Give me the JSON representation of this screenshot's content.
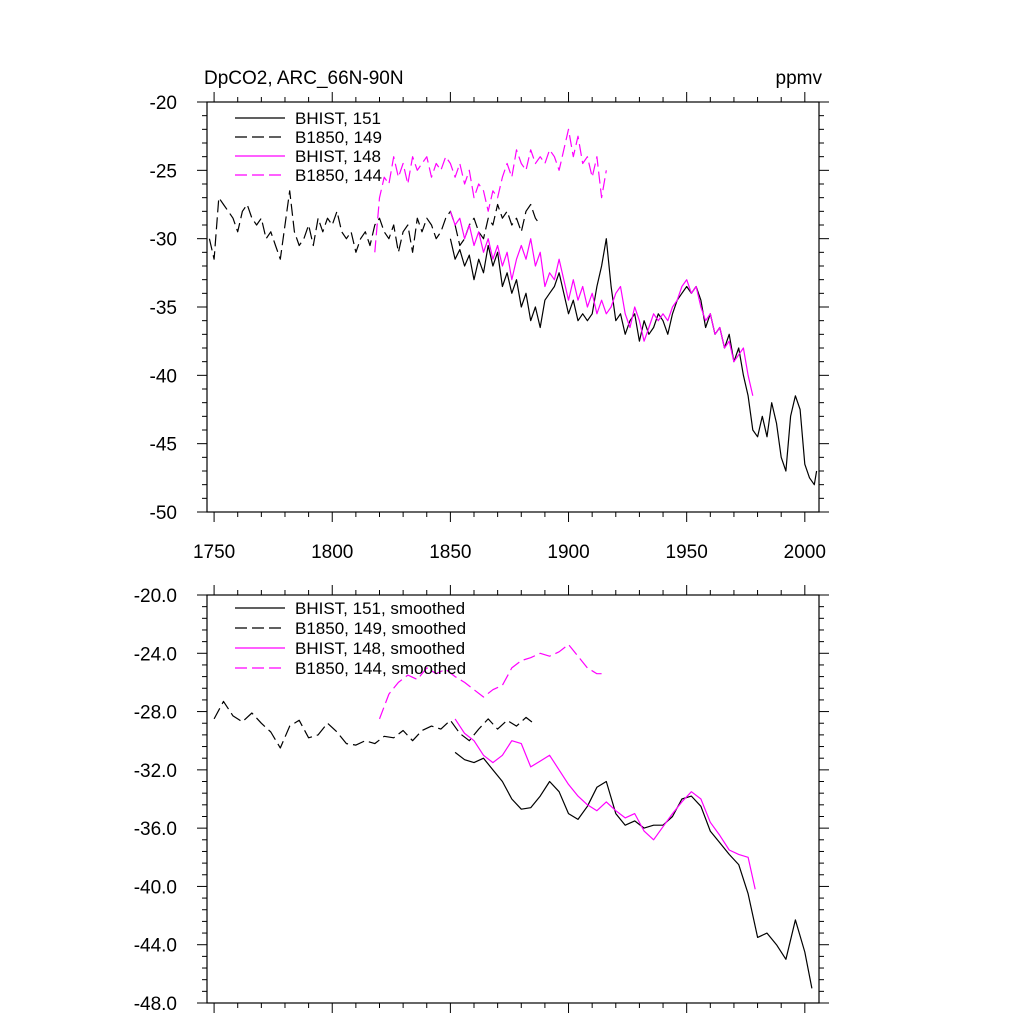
{
  "chart_data": [
    {
      "type": "line",
      "title": "DpCO2, ARC_66N-90N",
      "units": "ppmv",
      "xlim": [
        1747,
        2006
      ],
      "ylim": [
        -50,
        -20
      ],
      "x_ticks": [
        "1750",
        "1800",
        "1850",
        "1900",
        "1950",
        "2000"
      ],
      "x_tick_values": [
        1750,
        1800,
        1850,
        1900,
        1950,
        2000
      ],
      "y_ticks": [
        "-20",
        "-25",
        "-30",
        "-35",
        "-40",
        "-45",
        "-50"
      ],
      "y_tick_values": [
        -20,
        -25,
        -30,
        -35,
        -40,
        -45,
        -50
      ],
      "legend_placement": "top-left",
      "series": [
        {
          "name": "BHIST, 151",
          "color": "#000000",
          "dash": "solid",
          "x": [
            1850,
            1852,
            1854,
            1856,
            1858,
            1860,
            1862,
            1864,
            1866,
            1868,
            1870,
            1872,
            1874,
            1876,
            1878,
            1880,
            1882,
            1884,
            1886,
            1888,
            1890,
            1892,
            1894,
            1896,
            1898,
            1900,
            1902,
            1904,
            1906,
            1908,
            1910,
            1912,
            1914,
            1916,
            1918,
            1920,
            1922,
            1924,
            1926,
            1928,
            1930,
            1932,
            1934,
            1936,
            1938,
            1940,
            1942,
            1944,
            1946,
            1948,
            1950,
            1952,
            1954,
            1956,
            1958,
            1960,
            1962,
            1964,
            1966,
            1968,
            1970,
            1972,
            1974,
            1976,
            1978,
            1980,
            1982,
            1984,
            1986,
            1988,
            1990,
            1992,
            1994,
            1996,
            1998,
            2000,
            2002,
            2004,
            2005
          ],
          "y": [
            -30.0,
            -31.5,
            -30.8,
            -32.0,
            -31.2,
            -33.0,
            -31.5,
            -32.5,
            -30.5,
            -32.0,
            -31.0,
            -33.5,
            -32.5,
            -34.0,
            -33.0,
            -35.0,
            -34.0,
            -36.0,
            -35.0,
            -36.5,
            -34.5,
            -34.0,
            -33.5,
            -32.5,
            -34.0,
            -35.5,
            -34.5,
            -36.0,
            -35.5,
            -36.0,
            -35.5,
            -33.5,
            -32.0,
            -30.0,
            -33.5,
            -36.0,
            -35.5,
            -37.0,
            -36.0,
            -35.5,
            -37.5,
            -36.0,
            -37.0,
            -36.5,
            -35.5,
            -36.0,
            -37.0,
            -35.5,
            -34.5,
            -34.0,
            -33.5,
            -34.0,
            -33.5,
            -34.5,
            -36.5,
            -35.5,
            -37.0,
            -36.5,
            -38.0,
            -37.0,
            -39.0,
            -38.0,
            -40.0,
            -41.5,
            -44.0,
            -44.5,
            -43.0,
            -44.5,
            -42.0,
            -43.5,
            -46.0,
            -47.0,
            -43.0,
            -41.5,
            -42.5,
            -46.5,
            -47.5,
            -48.0,
            -47.0
          ]
        },
        {
          "name": "B1850, 149",
          "color": "#000000",
          "dash": "dashed",
          "x": [
            1748,
            1750,
            1752,
            1754,
            1756,
            1758,
            1760,
            1762,
            1764,
            1766,
            1768,
            1770,
            1772,
            1774,
            1776,
            1778,
            1780,
            1782,
            1784,
            1786,
            1788,
            1790,
            1792,
            1794,
            1796,
            1798,
            1800,
            1802,
            1804,
            1806,
            1808,
            1810,
            1812,
            1814,
            1816,
            1818,
            1820,
            1822,
            1824,
            1826,
            1828,
            1830,
            1832,
            1834,
            1836,
            1838,
            1840,
            1842,
            1844,
            1846,
            1848,
            1850,
            1852,
            1854,
            1856,
            1858,
            1860,
            1862,
            1864,
            1866,
            1868,
            1870,
            1872,
            1874,
            1876,
            1878,
            1880,
            1882,
            1884,
            1886,
            1888
          ],
          "y": [
            -30.0,
            -31.5,
            -27.0,
            -27.5,
            -28.0,
            -28.5,
            -29.5,
            -28.0,
            -27.5,
            -28.5,
            -29.0,
            -28.5,
            -30.0,
            -29.5,
            -30.5,
            -31.5,
            -29.0,
            -26.5,
            -29.5,
            -30.5,
            -30.0,
            -29.0,
            -30.5,
            -28.5,
            -29.5,
            -28.5,
            -29.0,
            -28.0,
            -29.5,
            -30.0,
            -29.5,
            -31.0,
            -30.0,
            -29.5,
            -30.5,
            -29.0,
            -28.5,
            -29.5,
            -30.0,
            -29.0,
            -31.0,
            -29.5,
            -29.0,
            -31.0,
            -28.5,
            -29.5,
            -28.5,
            -29.0,
            -30.0,
            -29.5,
            -28.5,
            -28.0,
            -29.0,
            -30.5,
            -30.0,
            -29.0,
            -28.5,
            -29.5,
            -30.0,
            -28.5,
            -29.0,
            -27.5,
            -28.5,
            -28.0,
            -29.0,
            -28.5,
            -29.5,
            -28.0,
            -27.5,
            -28.5,
            -29.0
          ]
        },
        {
          "name": "BHIST, 148",
          "color": "#ff00ff",
          "dash": "solid",
          "x": [
            1850,
            1852,
            1854,
            1856,
            1858,
            1860,
            1862,
            1864,
            1866,
            1868,
            1870,
            1872,
            1874,
            1876,
            1878,
            1880,
            1882,
            1884,
            1886,
            1888,
            1890,
            1892,
            1894,
            1896,
            1898,
            1900,
            1902,
            1904,
            1906,
            1908,
            1910,
            1912,
            1914,
            1916,
            1918,
            1920,
            1922,
            1924,
            1926,
            1928,
            1930,
            1932,
            1934,
            1936,
            1938,
            1940,
            1942,
            1944,
            1946,
            1948,
            1950,
            1952,
            1954,
            1956,
            1958,
            1960,
            1962,
            1964,
            1966,
            1968,
            1970,
            1972,
            1974,
            1976,
            1978
          ],
          "y": [
            -28.0,
            -29.0,
            -28.5,
            -30.0,
            -29.0,
            -30.5,
            -29.5,
            -31.0,
            -30.0,
            -31.5,
            -30.5,
            -32.0,
            -31.0,
            -33.0,
            -31.5,
            -30.5,
            -31.5,
            -30.0,
            -32.0,
            -31.0,
            -33.5,
            -32.5,
            -33.0,
            -31.5,
            -33.0,
            -34.5,
            -33.0,
            -34.5,
            -33.5,
            -35.0,
            -34.0,
            -35.5,
            -34.5,
            -35.5,
            -35.0,
            -34.0,
            -33.5,
            -35.5,
            -36.5,
            -35.0,
            -36.0,
            -37.5,
            -36.5,
            -35.5,
            -36.0,
            -35.5,
            -36.0,
            -35.0,
            -34.5,
            -33.5,
            -33.0,
            -34.0,
            -33.5,
            -35.0,
            -36.0,
            -35.5,
            -37.0,
            -36.5,
            -38.0,
            -37.5,
            -39.0,
            -38.5,
            -38.0,
            -40.0,
            -41.5
          ]
        },
        {
          "name": "B1850, 144",
          "color": "#ff00ff",
          "dash": "dashed",
          "x": [
            1818,
            1820,
            1822,
            1824,
            1826,
            1828,
            1830,
            1832,
            1834,
            1836,
            1838,
            1840,
            1842,
            1844,
            1846,
            1848,
            1850,
            1852,
            1854,
            1856,
            1858,
            1860,
            1862,
            1864,
            1866,
            1868,
            1870,
            1872,
            1874,
            1876,
            1878,
            1880,
            1882,
            1884,
            1886,
            1888,
            1890,
            1892,
            1894,
            1896,
            1898,
            1900,
            1902,
            1904,
            1906,
            1908,
            1910,
            1912,
            1914,
            1916
          ],
          "y": [
            -31.0,
            -27.0,
            -25.5,
            -26.0,
            -24.0,
            -25.5,
            -24.5,
            -26.0,
            -24.0,
            -25.0,
            -24.5,
            -24.0,
            -25.5,
            -24.5,
            -25.0,
            -24.0,
            -24.5,
            -25.5,
            -24.5,
            -26.0,
            -25.0,
            -27.0,
            -26.0,
            -26.5,
            -28.0,
            -26.5,
            -27.0,
            -25.5,
            -24.5,
            -25.5,
            -23.5,
            -24.5,
            -25.0,
            -23.5,
            -24.5,
            -24.0,
            -24.5,
            -23.5,
            -24.0,
            -25.0,
            -23.5,
            -22.0,
            -24.0,
            -22.5,
            -24.5,
            -24.0,
            -25.5,
            -24.0,
            -27.0,
            -25.0
          ]
        }
      ]
    },
    {
      "type": "line",
      "title": "",
      "xlim": [
        1747,
        2006
      ],
      "ylim": [
        -48,
        -20
      ],
      "x_tick_values": [
        1750,
        1800,
        1850,
        1900,
        1950,
        2000
      ],
      "y_ticks": [
        "-20.0",
        "-24.0",
        "-28.0",
        "-32.0",
        "-36.0",
        "-40.0",
        "-44.0",
        "-48.0"
      ],
      "y_tick_values": [
        -20,
        -24,
        -28,
        -32,
        -36,
        -40,
        -44,
        -48
      ],
      "legend_placement": "top-left",
      "series": [
        {
          "name": "BHIST, 151, smoothed",
          "color": "#000000",
          "dash": "solid",
          "x": [
            1852,
            1856,
            1860,
            1864,
            1868,
            1872,
            1876,
            1880,
            1884,
            1888,
            1892,
            1896,
            1900,
            1904,
            1908,
            1912,
            1916,
            1920,
            1924,
            1928,
            1932,
            1936,
            1940,
            1944,
            1948,
            1952,
            1956,
            1960,
            1964,
            1968,
            1972,
            1976,
            1980,
            1984,
            1988,
            1992,
            1996,
            2000,
            2003
          ],
          "y": [
            -30.8,
            -31.3,
            -31.5,
            -31.2,
            -32.0,
            -32.8,
            -34.0,
            -34.7,
            -34.6,
            -33.8,
            -32.8,
            -33.5,
            -35.0,
            -35.4,
            -34.5,
            -33.2,
            -32.8,
            -35.0,
            -35.8,
            -35.5,
            -36.0,
            -35.8,
            -35.8,
            -35.2,
            -34.0,
            -33.8,
            -34.5,
            -36.2,
            -37.0,
            -37.8,
            -38.5,
            -40.5,
            -43.5,
            -43.2,
            -44.0,
            -45.0,
            -42.3,
            -44.5,
            -47.0
          ]
        },
        {
          "name": "B1850, 149, smoothed",
          "color": "#000000",
          "dash": "dashed",
          "x": [
            1750,
            1754,
            1758,
            1762,
            1766,
            1770,
            1774,
            1778,
            1782,
            1786,
            1790,
            1794,
            1798,
            1802,
            1806,
            1810,
            1814,
            1818,
            1822,
            1826,
            1830,
            1834,
            1838,
            1842,
            1846,
            1850,
            1854,
            1858,
            1862,
            1866,
            1870,
            1874,
            1878,
            1882,
            1886
          ],
          "y": [
            -28.5,
            -27.3,
            -28.3,
            -28.7,
            -28.1,
            -28.8,
            -29.4,
            -30.5,
            -29.0,
            -28.6,
            -29.8,
            -29.6,
            -28.8,
            -29.4,
            -30.2,
            -30.3,
            -30.0,
            -30.2,
            -29.7,
            -29.8,
            -29.3,
            -30.0,
            -29.3,
            -29.0,
            -29.2,
            -28.6,
            -29.5,
            -30.0,
            -29.2,
            -28.5,
            -29.2,
            -28.6,
            -29.0,
            -28.4,
            -28.9
          ]
        },
        {
          "name": "BHIST, 148, smoothed",
          "color": "#ff00ff",
          "dash": "solid",
          "x": [
            1852,
            1856,
            1860,
            1864,
            1868,
            1872,
            1876,
            1880,
            1884,
            1888,
            1892,
            1896,
            1900,
            1904,
            1908,
            1912,
            1916,
            1920,
            1924,
            1928,
            1932,
            1936,
            1940,
            1944,
            1948,
            1952,
            1956,
            1960,
            1964,
            1968,
            1972,
            1976,
            1979
          ],
          "y": [
            -28.5,
            -29.5,
            -30.0,
            -31.0,
            -31.5,
            -31.0,
            -30.0,
            -30.2,
            -31.8,
            -31.4,
            -31.0,
            -32.0,
            -33.0,
            -33.8,
            -34.4,
            -34.8,
            -34.2,
            -34.8,
            -35.3,
            -35.0,
            -36.2,
            -36.8,
            -35.9,
            -35.0,
            -34.2,
            -33.5,
            -34.0,
            -35.6,
            -36.5,
            -37.5,
            -37.8,
            -38.0,
            -40.2
          ]
        },
        {
          "name": "B1850, 144, smoothed",
          "color": "#ff00ff",
          "dash": "dashed",
          "x": [
            1820,
            1824,
            1828,
            1832,
            1836,
            1840,
            1844,
            1848,
            1852,
            1856,
            1860,
            1864,
            1868,
            1872,
            1876,
            1880,
            1884,
            1888,
            1892,
            1896,
            1900,
            1904,
            1908,
            1912,
            1914
          ],
          "y": [
            -28.5,
            -26.8,
            -26.0,
            -25.5,
            -25.8,
            -25.0,
            -25.4,
            -25.1,
            -25.6,
            -26.0,
            -26.5,
            -27.0,
            -26.5,
            -26.2,
            -25.0,
            -24.5,
            -24.3,
            -24.0,
            -24.2,
            -23.9,
            -23.4,
            -24.2,
            -25.0,
            -25.4,
            -25.4
          ]
        }
      ]
    }
  ]
}
